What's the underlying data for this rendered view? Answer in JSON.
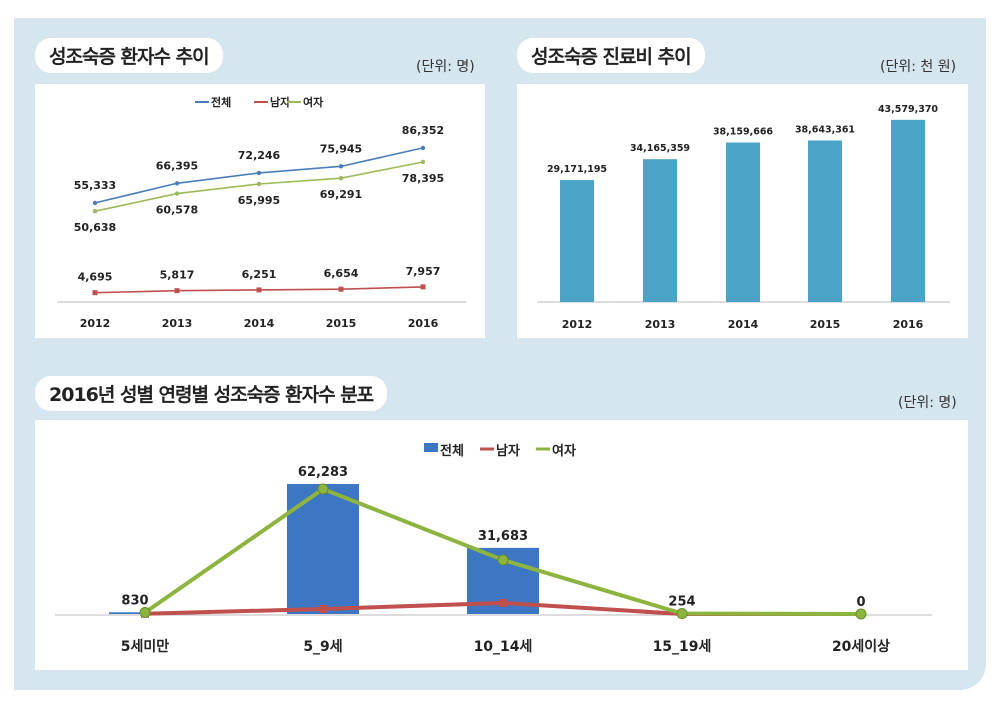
{
  "charts_titles": {
    "c1": "성조숙증 환자수 추이",
    "c2": "성조숙증 진료비 추이",
    "c3": "2016년 성별 연령별 성조숙증 환자수 분포"
  },
  "units": {
    "c1": "(단위: 명)",
    "c2": "(단위: 천 원)",
    "c3": "(단위: 명)"
  },
  "chart_data": [
    {
      "type": "line",
      "title": "성조숙증 환자수 추이",
      "categories": [
        "2012",
        "2013",
        "2014",
        "2015",
        "2016"
      ],
      "legend": "top",
      "series": [
        {
          "name": "전체",
          "color": "#4a7ebb",
          "values": [
            55333,
            66395,
            72246,
            75945,
            86352
          ],
          "labels": [
            "55,333",
            "66,395",
            "72,246",
            "75,945",
            "86,352"
          ]
        },
        {
          "name": "남자",
          "color": "#c0504d",
          "values": [
            4695,
            5817,
            6251,
            6654,
            7957
          ],
          "labels": [
            "4,695",
            "5,817",
            "6,251",
            "6,654",
            "7,957"
          ]
        },
        {
          "name": "여자",
          "color": "#9bbb59",
          "values": [
            50638,
            60578,
            65995,
            69291,
            78395
          ],
          "labels": [
            "50,638",
            "60,578",
            "65,995",
            "69,291",
            "78,395"
          ]
        }
      ]
    },
    {
      "type": "bar",
      "title": "성조숙증 진료비 추이",
      "categories": [
        "2012",
        "2013",
        "2014",
        "2015",
        "2016"
      ],
      "color": "#4ba3c8",
      "values": [
        29171195,
        34165359,
        38159666,
        38643361,
        43579370
      ],
      "labels": [
        "29,171,195",
        "34,165,359",
        "38,159,666",
        "38,643,361",
        "43,579,370"
      ]
    },
    {
      "type": "bar+line",
      "title": "2016년 성별 연령별 성조숙증 환자수 분포",
      "categories": [
        "5세미만",
        "5_9세",
        "10_14세",
        "15_19세",
        "20세이상"
      ],
      "legend": "top",
      "series": [
        {
          "name": "전체",
          "type": "bar",
          "color": "#3d76c2",
          "values": [
            830,
            62283,
            31683,
            254,
            0
          ],
          "labels": [
            "830",
            "62,283",
            "31,683",
            "254",
            "0"
          ]
        },
        {
          "name": "남자",
          "type": "line",
          "color": "#c0504d",
          "values": [
            130,
            2400,
            5300,
            20,
            0
          ]
        },
        {
          "name": "여자",
          "type": "line",
          "color": "#8db43e",
          "values": [
            700,
            59900,
            25900,
            230,
            0
          ]
        }
      ]
    }
  ]
}
